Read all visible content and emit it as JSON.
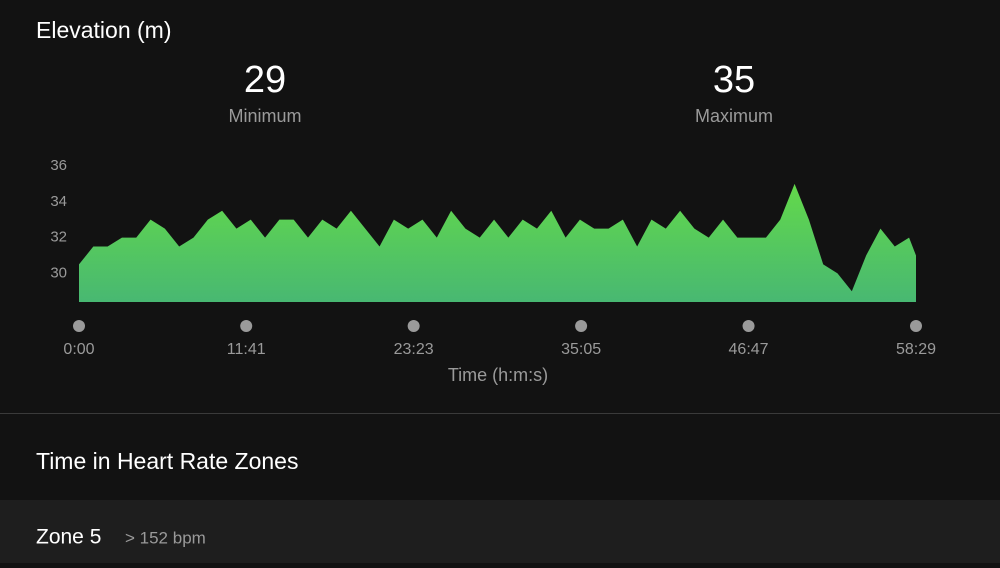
{
  "header": {
    "title": "Elevation (m)"
  },
  "stats": [
    {
      "value": "29",
      "label": "Minimum"
    },
    {
      "value": "35",
      "label": "Maximum"
    }
  ],
  "chart_data": {
    "type": "area",
    "color": "#5fd64b",
    "x": [
      0,
      60,
      120,
      180,
      240,
      300,
      360,
      420,
      480,
      540,
      600,
      660,
      720,
      780,
      840,
      900,
      960,
      1020,
      1080,
      1140,
      1200,
      1260,
      1320,
      1380,
      1440,
      1500,
      1560,
      1620,
      1680,
      1740,
      1800,
      1860,
      1920,
      1980,
      2040,
      2100,
      2160,
      2220,
      2280,
      2340,
      2400,
      2460,
      2520,
      2580,
      2640,
      2700,
      2760,
      2820,
      2880,
      2940,
      3000,
      3060,
      3120,
      3180,
      3240,
      3300,
      3360,
      3420,
      3480,
      3509
    ],
    "y": [
      30.5,
      31.5,
      31.5,
      32,
      32,
      33,
      32.5,
      31.5,
      32,
      33,
      33.5,
      32.5,
      33,
      32,
      33,
      33,
      32,
      33,
      32.5,
      33.5,
      32.5,
      31.5,
      33,
      32.5,
      33,
      32,
      33.5,
      32.5,
      32,
      33,
      32,
      33,
      32.5,
      33.5,
      32,
      33,
      32.5,
      32.5,
      33,
      31.5,
      33,
      32.5,
      33.5,
      32.5,
      32,
      33,
      32,
      32,
      32,
      33,
      35,
      33,
      30.5,
      30,
      29,
      31,
      32.5,
      31.5,
      32,
      31
    ],
    "xlim": [
      0,
      3509
    ],
    "ylim": [
      28.4,
      36
    ],
    "xticks": [
      {
        "value": 0,
        "label": "0:00"
      },
      {
        "value": 701,
        "label": "11:41"
      },
      {
        "value": 1403,
        "label": "23:23"
      },
      {
        "value": 2105,
        "label": "35:05"
      },
      {
        "value": 2807,
        "label": "46:47"
      },
      {
        "value": 3509,
        "label": "58:29"
      }
    ],
    "yticks": [
      30,
      32,
      34,
      36
    ],
    "x_label": "Time (h:m:s)"
  },
  "section": {
    "title": "Time in Heart Rate Zones"
  },
  "zone": {
    "name": "Zone 5",
    "range": "> 152 bpm"
  }
}
